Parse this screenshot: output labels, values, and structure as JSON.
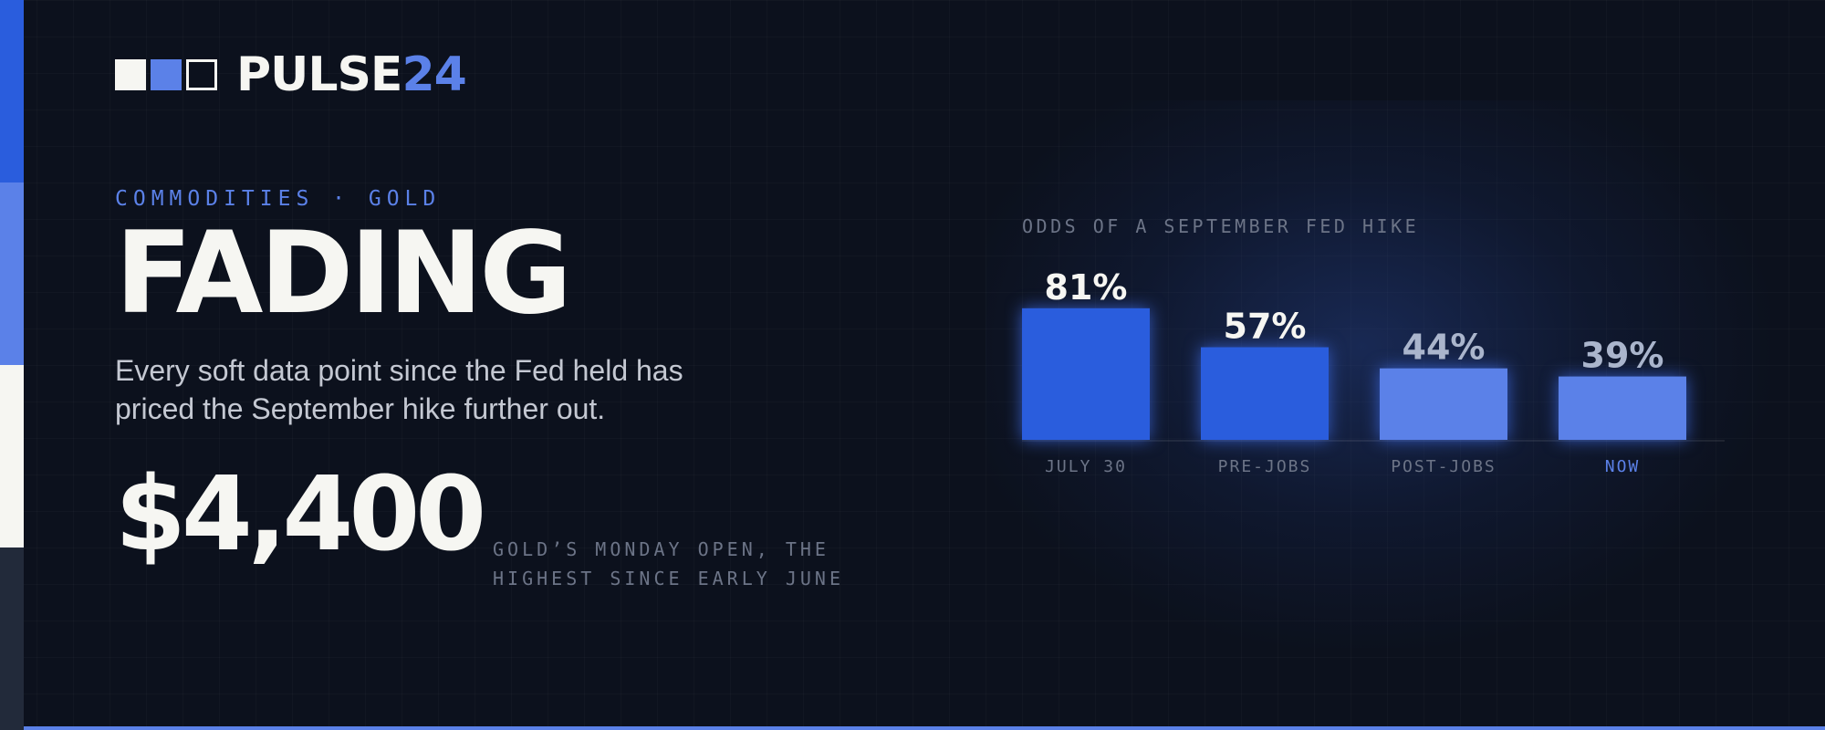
{
  "brand": {
    "name_main": "PULSE",
    "name_accent": "24"
  },
  "colors": {
    "background": "#0c111d",
    "accent_strong": "#2a5ddd",
    "accent_light": "#5b81e8",
    "white": "#f6f6f2",
    "muted_text": "#6c7487",
    "value_muted": "#aab5cc",
    "edge_stripe": [
      "#2a5ddd",
      "#5b81e8",
      "#f6f6f2",
      "#222a3a"
    ]
  },
  "eyebrow": "COMMODITIES · GOLD",
  "headline": "FADING",
  "dek": "Every soft data point since the Fed held has priced the September hike further out.",
  "price": "$4,400",
  "price_note": "GOLD’S MONDAY OPEN, THE HIGHEST SINCE EARLY JUNE",
  "chart_data": {
    "type": "bar",
    "title": "ODDS OF A SEPTEMBER FED HIKE",
    "categories": [
      "JULY 30",
      "PRE-JOBS",
      "POST-JOBS",
      "NOW"
    ],
    "values": [
      81,
      57,
      44,
      39
    ],
    "value_labels": [
      "81%",
      "57%",
      "44%",
      "39%"
    ],
    "bar_colors": [
      "#2a5ddd",
      "#2a5ddd",
      "#5b81e8",
      "#5b81e8"
    ],
    "label_colors": [
      "#f6f6f2",
      "#f6f6f2",
      "#aab5cc",
      "#aab5cc"
    ],
    "category_colors": [
      "#6c7487",
      "#6c7487",
      "#6c7487",
      "#5b81e8"
    ],
    "xlabel": "",
    "ylabel": "",
    "ylim": [
      0,
      100
    ],
    "grid": false
  }
}
